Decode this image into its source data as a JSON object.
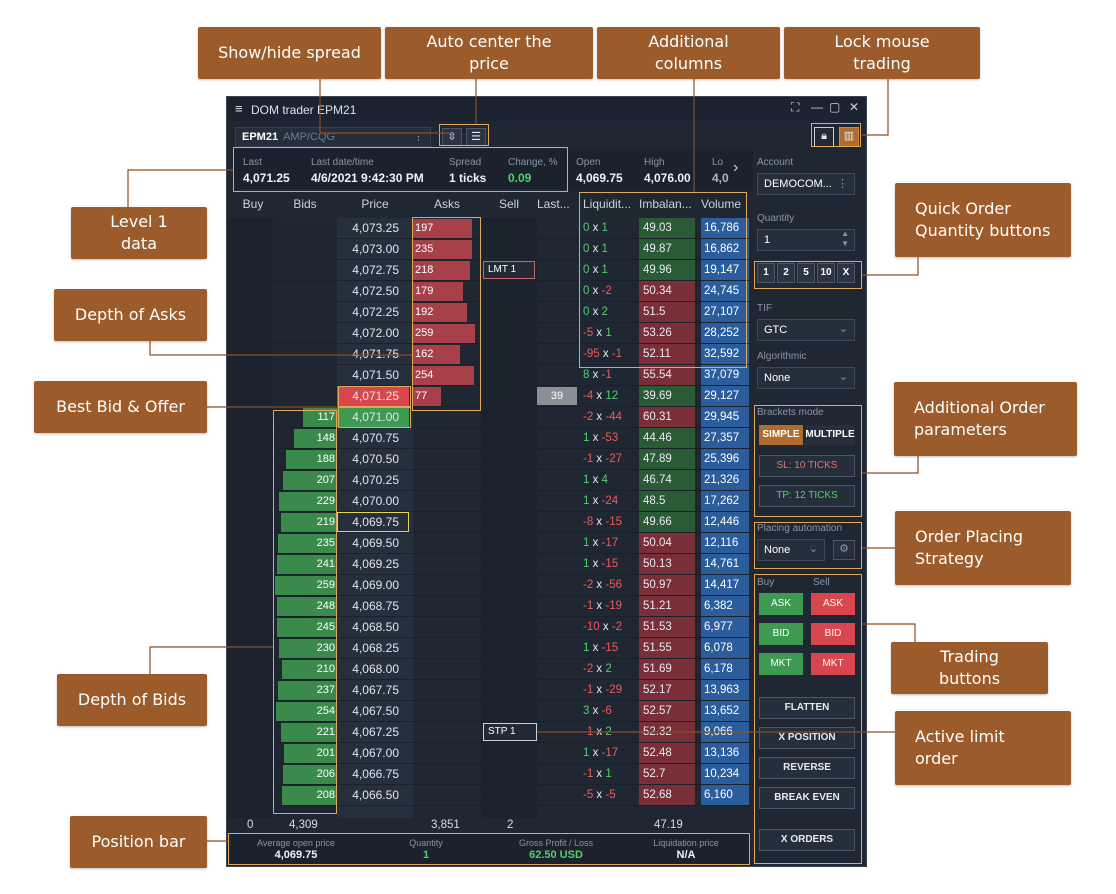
{
  "callouts": {
    "show_hide_spread": "Show/hide spread",
    "auto_center": "Auto center the price",
    "additional_columns": "Additional columns",
    "lock_mouse": "Lock mouse trading",
    "level1": "Level 1 data",
    "quick_qty": "Quick Order Quantity buttons",
    "depth_asks": "Depth of Asks",
    "best_bid_offer": "Best Bid & Offer",
    "additional_order": "Additional Order parameters",
    "order_placing": "Order Placing Strategy",
    "trading_buttons": "Trading buttons",
    "depth_bids": "Depth of Bids",
    "active_limit": "Active limit order",
    "position_bar": "Position bar"
  },
  "window": {
    "title": "DOM trader EPM21",
    "menu_icon": "≡",
    "symbol": "EPM21",
    "exchange": "AMP/CQG"
  },
  "level1": {
    "last_label": "Last",
    "last": "4,071.25",
    "date_label": "Last date/time",
    "date": "4/6/2021 9:42:30 PM",
    "spread_label": "Spread",
    "spread": "1 ticks",
    "change_label": "Change, %",
    "change": "0.09",
    "open_label": "Open",
    "open": "4,069.75",
    "high_label": "High",
    "high": "4,076.00",
    "low_label": "Lo",
    "low": "4,0"
  },
  "columns": [
    "Buy",
    "Bids",
    "Price",
    "Asks",
    "Sell",
    "Last...",
    "Liquidit...",
    "Imbalan...",
    "Volume"
  ],
  "ladder": [
    {
      "price": "4,073.25",
      "ask": "197",
      "ask_frac": 0.95,
      "lb": "0",
      "ls": "1",
      "imb": "49.03",
      "vol": "16,786"
    },
    {
      "price": "4,073.00",
      "ask": "235",
      "ask_frac": 0.95,
      "lb": "0",
      "ls": "1",
      "imb": "49.87",
      "vol": "16,862"
    },
    {
      "price": "4,072.75",
      "ask": "218",
      "ask_frac": 0.92,
      "lb": "0",
      "ls": "1",
      "imb": "49.96",
      "vol": "19,147"
    },
    {
      "price": "4,072.50",
      "ask": "179",
      "ask_frac": 0.8,
      "lb": "0",
      "ls": "-2",
      "imb": "50.34",
      "vol": "24,745"
    },
    {
      "price": "4,072.25",
      "ask": "192",
      "ask_frac": 0.87,
      "lb": "0",
      "ls": "2",
      "imb": "51.5",
      "vol": "27,107"
    },
    {
      "price": "4,072.00",
      "ask": "259",
      "ask_frac": 1.0,
      "lb": "-5",
      "ls": "1",
      "imb": "53.26",
      "vol": "28,252"
    },
    {
      "price": "4,071.75",
      "ask": "162",
      "ask_frac": 0.75,
      "lb": "-95",
      "ls": "-1",
      "imb": "52.11",
      "vol": "32,592"
    },
    {
      "price": "4,071.50",
      "ask": "254",
      "ask_frac": 0.98,
      "lb": "8",
      "ls": "-1",
      "imb": "55.54",
      "vol": "37,079"
    },
    {
      "price": "4,071.25",
      "ask": "77",
      "ask_frac": 0.45,
      "last": "39",
      "lb": "-4",
      "ls": "12",
      "imb": "39.69",
      "vol": "29,127",
      "best": "ask"
    },
    {
      "price": "4,071.00",
      "bid": "117",
      "bid_frac": 0.55,
      "lb": "-2",
      "ls": "-44",
      "imb": "60.31",
      "vol": "29,945",
      "best": "bid"
    },
    {
      "price": "4,070.75",
      "bid": "148",
      "bid_frac": 0.7,
      "lb": "1",
      "ls": "-53",
      "imb": "44.46",
      "vol": "27,357"
    },
    {
      "price": "4,070.50",
      "bid": "188",
      "bid_frac": 0.82,
      "lb": "-1",
      "ls": "-27",
      "imb": "47.89",
      "vol": "25,396"
    },
    {
      "price": "4,070.25",
      "bid": "207",
      "bid_frac": 0.87,
      "lb": "1",
      "ls": "4",
      "imb": "46.74",
      "vol": "21,326"
    },
    {
      "price": "4,070.00",
      "bid": "229",
      "bid_frac": 0.93,
      "lb": "1",
      "ls": "-24",
      "imb": "48.5",
      "vol": "17,262"
    },
    {
      "price": "4,069.75",
      "bid": "219",
      "bid_frac": 0.9,
      "lb": "-8",
      "ls": "-15",
      "imb": "49.66",
      "vol": "12,446"
    },
    {
      "price": "4,069.50",
      "bid": "235",
      "bid_frac": 0.95,
      "lb": "1",
      "ls": "-17",
      "imb": "50.04",
      "vol": "12,116"
    },
    {
      "price": "4,069.25",
      "bid": "241",
      "bid_frac": 0.96,
      "lb": "1",
      "ls": "-15",
      "imb": "50.13",
      "vol": "14,761"
    },
    {
      "price": "4,069.00",
      "bid": "259",
      "bid_frac": 1.0,
      "lb": "-2",
      "ls": "-56",
      "imb": "50.97",
      "vol": "14,417"
    },
    {
      "price": "4,068.75",
      "bid": "248",
      "bid_frac": 0.97,
      "lb": "-1",
      "ls": "-19",
      "imb": "51.21",
      "vol": "6,382"
    },
    {
      "price": "4,068.50",
      "bid": "245",
      "bid_frac": 0.96,
      "lb": "-10",
      "ls": "-2",
      "imb": "51.53",
      "vol": "6,977"
    },
    {
      "price": "4,068.25",
      "bid": "230",
      "bid_frac": 0.93,
      "lb": "1",
      "ls": "-15",
      "imb": "51.55",
      "vol": "6,078"
    },
    {
      "price": "4,068.00",
      "bid": "210",
      "bid_frac": 0.88,
      "lb": "-2",
      "ls": "2",
      "imb": "51.69",
      "vol": "6,178"
    },
    {
      "price": "4,067.75",
      "bid": "237",
      "bid_frac": 0.95,
      "lb": "-1",
      "ls": "-29",
      "imb": "52.17",
      "vol": "13,963"
    },
    {
      "price": "4,067.50",
      "bid": "254",
      "bid_frac": 0.98,
      "lb": "3",
      "ls": "-6",
      "imb": "52.57",
      "vol": "13,652"
    },
    {
      "price": "4,067.25",
      "bid": "221",
      "bid_frac": 0.9,
      "lb": "-1",
      "ls": "2",
      "imb": "52.32",
      "vol": "9,066"
    },
    {
      "price": "4,067.00",
      "bid": "201",
      "bid_frac": 0.86,
      "lb": "1",
      "ls": "-17",
      "imb": "52.48",
      "vol": "13,136"
    },
    {
      "price": "4,066.75",
      "bid": "206",
      "bid_frac": 0.87,
      "lb": "-1",
      "ls": "1",
      "imb": "52.7",
      "vol": "10,234"
    },
    {
      "price": "4,066.50",
      "bid": "208",
      "bid_frac": 0.88,
      "lb": "-5",
      "ls": "-5",
      "imb": "52.68",
      "vol": "6,160"
    }
  ],
  "orders": {
    "lmt": "LMT 1",
    "stp": "STP 1"
  },
  "totals": {
    "buy": "0",
    "bids": "4,309",
    "asks": "3,851",
    "sell": "2",
    "imb": "47.19"
  },
  "position": {
    "avg_label": "Average open price",
    "avg": "4,069.75",
    "qty_label": "Quantity",
    "qty": "1",
    "pl_label": "Gross Profit / Loss",
    "pl": "62.50 USD",
    "liq_label": "Liquidation price",
    "liq": "N/A"
  },
  "side": {
    "account_label": "Account",
    "account": "DEMOCOM...",
    "quantity_label": "Quantity",
    "quantity": "1",
    "quick": [
      "1",
      "2",
      "5",
      "10",
      "X"
    ],
    "tif_label": "TIF",
    "tif": "GTC",
    "algo_label": "Algorithmic",
    "algo": "None",
    "brackets_label": "Brackets mode",
    "simple": "SIMPLE",
    "multiple": "MULTIPLE",
    "sl": "SL: 10 TICKS",
    "tp": "TP: 12 TICKS",
    "placing_label": "Placing automation",
    "placing": "None",
    "buy_label": "Buy",
    "sell_label": "Sell",
    "ask": "ASK",
    "bid": "BID",
    "mkt": "MKT",
    "flatten": "FLATTEN",
    "xposition": "X POSITION",
    "reverse": "REVERSE",
    "breakeven": "BREAK EVEN",
    "xorders": "X ORDERS"
  },
  "colors": {
    "bid": "#3a8a4c",
    "ask": "#a8404a",
    "volume": "#2b5d9c",
    "callout": "#9b5b2b",
    "accent": "#e0a85a"
  }
}
